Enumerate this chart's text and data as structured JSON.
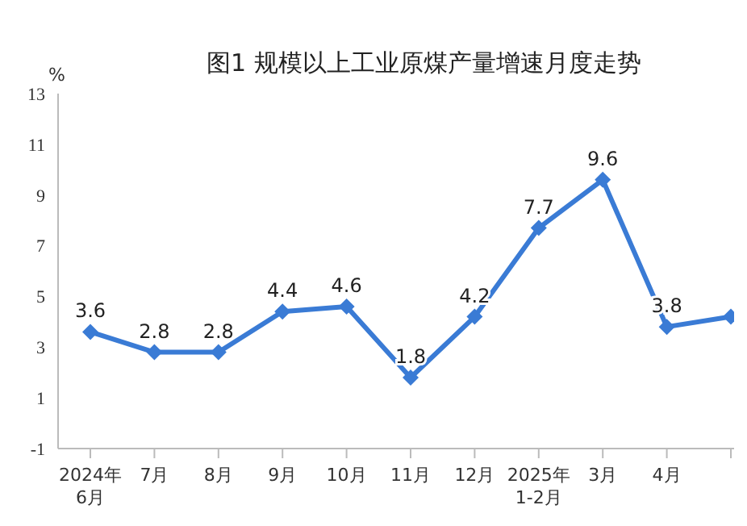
{
  "chart_data": {
    "type": "line",
    "title": "图1  规模以上工业原煤产量增速月度走势",
    "ylabel": "%",
    "categories": [
      "2024年\n6月",
      "7月",
      "8月",
      "9月",
      "10月",
      "11月",
      "12月",
      "2025年\n1-2月",
      "3月",
      "4月",
      null
    ],
    "series": [
      {
        "color": "#3a7bd5",
        "values": [
          3.6,
          2.8,
          2.8,
          4.4,
          4.6,
          1.8,
          4.2,
          7.7,
          9.6,
          3.8,
          4.2
        ],
        "value_labels": [
          "3.6",
          "2.8",
          "2.8",
          "4.4",
          "4.6",
          "1.8",
          "4.2",
          "7.7",
          "9.6",
          "3.8",
          null
        ]
      }
    ],
    "ylim": [
      -1,
      13
    ],
    "yticks": [
      -1,
      1,
      3,
      5,
      7,
      9,
      11,
      13
    ],
    "grid": false,
    "legend": false,
    "marker": "diamond",
    "line_style": "solid"
  }
}
